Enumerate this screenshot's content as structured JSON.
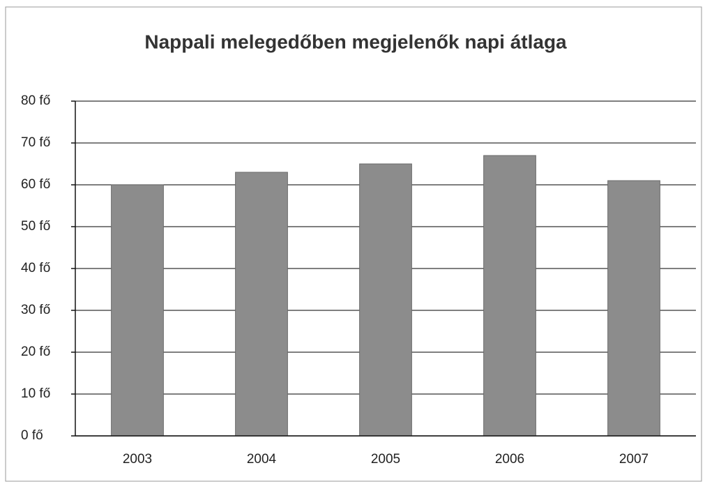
{
  "chart_data": {
    "type": "bar",
    "title": "Nappali melegedőben megjelenők napi átlaga",
    "categories": [
      "2003",
      "2004",
      "2005",
      "2006",
      "2007"
    ],
    "values": [
      60,
      63,
      65,
      67,
      61
    ],
    "color": "#8c8c8c",
    "ylim": [
      0,
      80
    ],
    "yticks": [
      {
        "value": 0,
        "label": "0 fő"
      },
      {
        "value": 10,
        "label": "10 fő"
      },
      {
        "value": 20,
        "label": "20 fő"
      },
      {
        "value": 30,
        "label": "30 fő"
      },
      {
        "value": 40,
        "label": "40 fő"
      },
      {
        "value": 50,
        "label": "50 fő"
      },
      {
        "value": 60,
        "label": "60 fő"
      },
      {
        "value": 70,
        "label": "70 fő"
      },
      {
        "value": 80,
        "label": "80 fő"
      }
    ],
    "grid": true
  }
}
